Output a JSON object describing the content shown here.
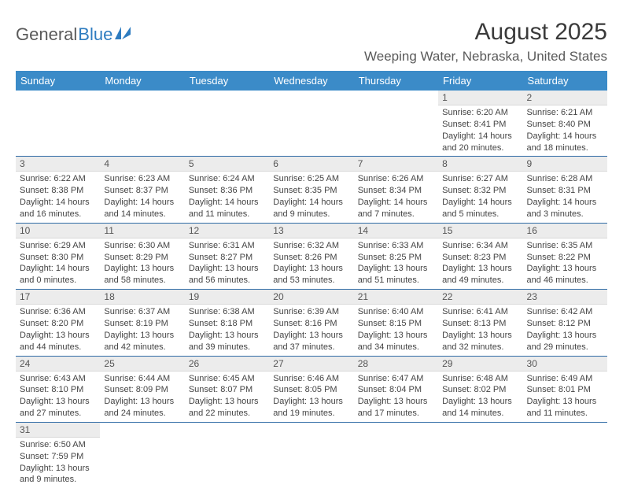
{
  "logo": {
    "text1": "General",
    "text2": "Blue"
  },
  "title": "August 2025",
  "location": "Weeping Water, Nebraska, United States",
  "colors": {
    "header_bg": "#3b8bc8",
    "header_fg": "#ffffff",
    "daynum_bg": "#ececec",
    "row_border": "#2e6aa5",
    "logo_blue": "#2e7cc0",
    "body_text": "#444444"
  },
  "weekdays": [
    "Sunday",
    "Monday",
    "Tuesday",
    "Wednesday",
    "Thursday",
    "Friday",
    "Saturday"
  ],
  "weeks": [
    [
      {
        "n": "",
        "sr": "",
        "ss": "",
        "dl": "",
        "empty": true
      },
      {
        "n": "",
        "sr": "",
        "ss": "",
        "dl": "",
        "empty": true
      },
      {
        "n": "",
        "sr": "",
        "ss": "",
        "dl": "",
        "empty": true
      },
      {
        "n": "",
        "sr": "",
        "ss": "",
        "dl": "",
        "empty": true
      },
      {
        "n": "",
        "sr": "",
        "ss": "",
        "dl": "",
        "empty": true
      },
      {
        "n": "1",
        "sr": "Sunrise: 6:20 AM",
        "ss": "Sunset: 8:41 PM",
        "dl": "Daylight: 14 hours and 20 minutes."
      },
      {
        "n": "2",
        "sr": "Sunrise: 6:21 AM",
        "ss": "Sunset: 8:40 PM",
        "dl": "Daylight: 14 hours and 18 minutes."
      }
    ],
    [
      {
        "n": "3",
        "sr": "Sunrise: 6:22 AM",
        "ss": "Sunset: 8:38 PM",
        "dl": "Daylight: 14 hours and 16 minutes."
      },
      {
        "n": "4",
        "sr": "Sunrise: 6:23 AM",
        "ss": "Sunset: 8:37 PM",
        "dl": "Daylight: 14 hours and 14 minutes."
      },
      {
        "n": "5",
        "sr": "Sunrise: 6:24 AM",
        "ss": "Sunset: 8:36 PM",
        "dl": "Daylight: 14 hours and 11 minutes."
      },
      {
        "n": "6",
        "sr": "Sunrise: 6:25 AM",
        "ss": "Sunset: 8:35 PM",
        "dl": "Daylight: 14 hours and 9 minutes."
      },
      {
        "n": "7",
        "sr": "Sunrise: 6:26 AM",
        "ss": "Sunset: 8:34 PM",
        "dl": "Daylight: 14 hours and 7 minutes."
      },
      {
        "n": "8",
        "sr": "Sunrise: 6:27 AM",
        "ss": "Sunset: 8:32 PM",
        "dl": "Daylight: 14 hours and 5 minutes."
      },
      {
        "n": "9",
        "sr": "Sunrise: 6:28 AM",
        "ss": "Sunset: 8:31 PM",
        "dl": "Daylight: 14 hours and 3 minutes."
      }
    ],
    [
      {
        "n": "10",
        "sr": "Sunrise: 6:29 AM",
        "ss": "Sunset: 8:30 PM",
        "dl": "Daylight: 14 hours and 0 minutes."
      },
      {
        "n": "11",
        "sr": "Sunrise: 6:30 AM",
        "ss": "Sunset: 8:29 PM",
        "dl": "Daylight: 13 hours and 58 minutes."
      },
      {
        "n": "12",
        "sr": "Sunrise: 6:31 AM",
        "ss": "Sunset: 8:27 PM",
        "dl": "Daylight: 13 hours and 56 minutes."
      },
      {
        "n": "13",
        "sr": "Sunrise: 6:32 AM",
        "ss": "Sunset: 8:26 PM",
        "dl": "Daylight: 13 hours and 53 minutes."
      },
      {
        "n": "14",
        "sr": "Sunrise: 6:33 AM",
        "ss": "Sunset: 8:25 PM",
        "dl": "Daylight: 13 hours and 51 minutes."
      },
      {
        "n": "15",
        "sr": "Sunrise: 6:34 AM",
        "ss": "Sunset: 8:23 PM",
        "dl": "Daylight: 13 hours and 49 minutes."
      },
      {
        "n": "16",
        "sr": "Sunrise: 6:35 AM",
        "ss": "Sunset: 8:22 PM",
        "dl": "Daylight: 13 hours and 46 minutes."
      }
    ],
    [
      {
        "n": "17",
        "sr": "Sunrise: 6:36 AM",
        "ss": "Sunset: 8:20 PM",
        "dl": "Daylight: 13 hours and 44 minutes."
      },
      {
        "n": "18",
        "sr": "Sunrise: 6:37 AM",
        "ss": "Sunset: 8:19 PM",
        "dl": "Daylight: 13 hours and 42 minutes."
      },
      {
        "n": "19",
        "sr": "Sunrise: 6:38 AM",
        "ss": "Sunset: 8:18 PM",
        "dl": "Daylight: 13 hours and 39 minutes."
      },
      {
        "n": "20",
        "sr": "Sunrise: 6:39 AM",
        "ss": "Sunset: 8:16 PM",
        "dl": "Daylight: 13 hours and 37 minutes."
      },
      {
        "n": "21",
        "sr": "Sunrise: 6:40 AM",
        "ss": "Sunset: 8:15 PM",
        "dl": "Daylight: 13 hours and 34 minutes."
      },
      {
        "n": "22",
        "sr": "Sunrise: 6:41 AM",
        "ss": "Sunset: 8:13 PM",
        "dl": "Daylight: 13 hours and 32 minutes."
      },
      {
        "n": "23",
        "sr": "Sunrise: 6:42 AM",
        "ss": "Sunset: 8:12 PM",
        "dl": "Daylight: 13 hours and 29 minutes."
      }
    ],
    [
      {
        "n": "24",
        "sr": "Sunrise: 6:43 AM",
        "ss": "Sunset: 8:10 PM",
        "dl": "Daylight: 13 hours and 27 minutes."
      },
      {
        "n": "25",
        "sr": "Sunrise: 6:44 AM",
        "ss": "Sunset: 8:09 PM",
        "dl": "Daylight: 13 hours and 24 minutes."
      },
      {
        "n": "26",
        "sr": "Sunrise: 6:45 AM",
        "ss": "Sunset: 8:07 PM",
        "dl": "Daylight: 13 hours and 22 minutes."
      },
      {
        "n": "27",
        "sr": "Sunrise: 6:46 AM",
        "ss": "Sunset: 8:05 PM",
        "dl": "Daylight: 13 hours and 19 minutes."
      },
      {
        "n": "28",
        "sr": "Sunrise: 6:47 AM",
        "ss": "Sunset: 8:04 PM",
        "dl": "Daylight: 13 hours and 17 minutes."
      },
      {
        "n": "29",
        "sr": "Sunrise: 6:48 AM",
        "ss": "Sunset: 8:02 PM",
        "dl": "Daylight: 13 hours and 14 minutes."
      },
      {
        "n": "30",
        "sr": "Sunrise: 6:49 AM",
        "ss": "Sunset: 8:01 PM",
        "dl": "Daylight: 13 hours and 11 minutes."
      }
    ],
    [
      {
        "n": "31",
        "sr": "Sunrise: 6:50 AM",
        "ss": "Sunset: 7:59 PM",
        "dl": "Daylight: 13 hours and 9 minutes."
      },
      {
        "n": "",
        "sr": "",
        "ss": "",
        "dl": "",
        "empty": true
      },
      {
        "n": "",
        "sr": "",
        "ss": "",
        "dl": "",
        "empty": true
      },
      {
        "n": "",
        "sr": "",
        "ss": "",
        "dl": "",
        "empty": true
      },
      {
        "n": "",
        "sr": "",
        "ss": "",
        "dl": "",
        "empty": true
      },
      {
        "n": "",
        "sr": "",
        "ss": "",
        "dl": "",
        "empty": true
      },
      {
        "n": "",
        "sr": "",
        "ss": "",
        "dl": "",
        "empty": true
      }
    ]
  ]
}
